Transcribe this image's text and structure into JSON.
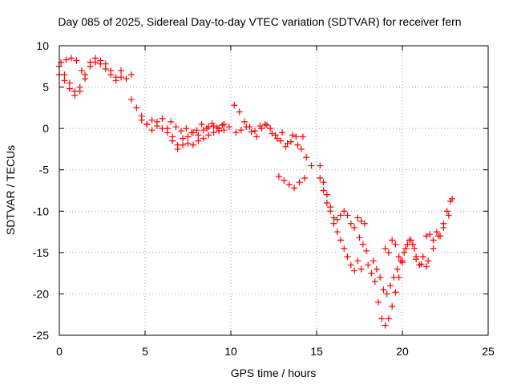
{
  "chart_data": {
    "type": "scatter",
    "title": "Day 085 of 2025, Sidereal Day-to-day VTEC variation (SDTVAR) for receiver fern",
    "xlabel": "GPS time / hours",
    "ylabel": "SDTVAR / TECUs",
    "xlim": [
      0,
      25
    ],
    "ylim": [
      -25,
      10
    ],
    "xticks": [
      0,
      5,
      10,
      15,
      20,
      25
    ],
    "yticks": [
      -25,
      -20,
      -15,
      -10,
      -5,
      0,
      5,
      10
    ],
    "xtick_labels": [
      "0",
      "5",
      "10",
      "15",
      "20",
      "25"
    ],
    "ytick_labels": [
      "-25",
      "-20",
      "-15",
      "-10",
      "-5",
      "0",
      "5",
      "10"
    ],
    "grid": true,
    "marker": "+",
    "color": "#ff0000",
    "series": [
      {
        "x": [
          0.0,
          0.3,
          0.6,
          0.9,
          1.2,
          1.5,
          1.8,
          2.1,
          2.4,
          2.7,
          3.0,
          3.3,
          3.6,
          3.9,
          4.2
        ],
        "y": [
          7.5,
          6.5,
          5.5,
          4.5,
          5.0,
          6.5,
          8.0,
          8.5,
          8.2,
          7.8,
          7.0,
          6.2,
          7.0,
          6.0,
          6.5
        ]
      },
      {
        "x": [
          0.0,
          0.3,
          0.6,
          0.9,
          1.2,
          1.5,
          1.8,
          2.1,
          2.4,
          2.7,
          3.0,
          3.3,
          3.6
        ],
        "y": [
          6.5,
          5.8,
          4.8,
          4.0,
          4.5,
          6.0,
          7.5,
          8.0,
          7.8,
          7.2,
          6.5,
          5.8,
          6.2
        ]
      },
      {
        "x": [
          0.1,
          0.4,
          0.7,
          1.0,
          1.3
        ],
        "y": [
          8.0,
          8.3,
          8.5,
          8.2,
          7.0
        ]
      },
      {
        "x": [
          4.2,
          4.5,
          4.8,
          5.1,
          5.4,
          5.7,
          6.0,
          6.3,
          6.6,
          6.9,
          7.2,
          7.5,
          7.8,
          8.1,
          8.4,
          8.7,
          9.0,
          9.3,
          9.6,
          9.9
        ],
        "y": [
          3.5,
          2.5,
          1.5,
          0.5,
          1.0,
          0.8,
          1.2,
          0.0,
          -1.0,
          -2.0,
          -1.2,
          -1.8,
          -0.5,
          -1.5,
          -0.2,
          -0.8,
          0.3,
          -0.3,
          0.5,
          0.2
        ]
      },
      {
        "x": [
          4.8,
          5.1,
          5.4,
          5.7,
          6.0,
          6.3,
          6.6,
          6.9,
          7.2,
          7.5,
          7.8,
          8.1,
          8.4,
          8.7,
          9.0,
          9.3,
          9.6
        ],
        "y": [
          1.0,
          0.5,
          -0.2,
          0.3,
          0.0,
          -0.5,
          -1.5,
          -2.5,
          -2.0,
          -1.0,
          -2.0,
          -0.8,
          -1.2,
          0.2,
          -0.5,
          0.0,
          -0.2
        ]
      },
      {
        "x": [
          6.5,
          6.8,
          7.1,
          7.4,
          7.7,
          8.0,
          8.3,
          8.6,
          8.9,
          9.2,
          9.5
        ],
        "y": [
          0.8,
          0.2,
          -0.3,
          0.0,
          -0.5,
          -0.2,
          0.5,
          0.0,
          0.6,
          0.1,
          0.4
        ]
      },
      {
        "x": [
          10.2,
          10.5,
          10.8,
          11.1,
          11.4,
          11.7,
          12.0,
          12.3,
          12.6,
          12.9,
          13.2,
          13.5,
          13.8,
          14.1,
          14.4,
          14.7
        ],
        "y": [
          2.8,
          2.0,
          0.8,
          0.2,
          -0.3,
          0.3,
          0.5,
          0.0,
          -0.8,
          -1.5,
          -2.2,
          -1.6,
          -1.0,
          -2.5,
          -3.5,
          -4.5
        ]
      },
      {
        "x": [
          10.3,
          10.6,
          10.9,
          11.2,
          11.5,
          11.8,
          12.1,
          12.4,
          12.7,
          13.0,
          13.3,
          13.6,
          13.9,
          14.2
        ],
        "y": [
          -0.5,
          -0.2,
          0.2,
          -0.4,
          -1.0,
          0.0,
          0.4,
          -0.6,
          -1.2,
          -0.5,
          -1.8,
          -0.8,
          -2.0,
          -1.0
        ]
      },
      {
        "x": [
          12.8,
          13.1,
          13.4,
          13.7,
          14.0,
          14.3
        ],
        "y": [
          -5.8,
          -6.3,
          -6.8,
          -7.2,
          -6.5,
          -6.0
        ]
      },
      {
        "x": [
          15.2,
          15.4,
          15.6,
          15.8,
          16.0,
          16.2,
          16.4,
          16.6,
          16.8,
          17.0,
          17.2,
          17.4,
          17.6,
          17.8
        ],
        "y": [
          -4.5,
          -6.5,
          -8.0,
          -9.5,
          -10.8,
          -11.0,
          -10.5,
          -10.0,
          -10.5,
          -11.5,
          -12.0,
          -10.8,
          -11.2,
          -11.5
        ]
      },
      {
        "x": [
          15.2,
          15.4,
          15.6,
          15.8,
          16.0,
          16.2,
          16.4,
          16.6,
          16.8,
          17.0,
          17.2,
          17.4,
          17.6
        ],
        "y": [
          -6.0,
          -7.5,
          -9.0,
          -10.0,
          -11.5,
          -12.5,
          -13.5,
          -14.5,
          -15.5,
          -16.5,
          -17.2,
          -16.0,
          -17.0
        ]
      },
      {
        "x": [
          17.5,
          17.7,
          17.9
        ],
        "y": [
          -13.2,
          -14.0,
          -14.8
        ]
      },
      {
        "x": [
          18.0,
          18.2,
          18.4,
          18.6,
          18.8,
          19.0,
          19.2,
          19.4,
          19.6,
          19.8,
          20.0,
          20.2,
          20.4,
          20.6,
          20.8,
          21.0,
          21.2,
          21.4,
          21.6,
          21.8,
          22.0,
          22.2,
          22.4,
          22.6,
          22.8
        ],
        "y": [
          -16.5,
          -17.5,
          -18.5,
          -21.0,
          -23.0,
          -23.8,
          -23.0,
          -21.5,
          -19.8,
          -18.0,
          -16.0,
          -14.5,
          -13.5,
          -14.0,
          -15.5,
          -16.5,
          -15.5,
          -13.0,
          -12.8,
          -13.5,
          -12.5,
          -13.0,
          -11.5,
          -10.0,
          -8.8
        ]
      },
      {
        "x": [
          18.3,
          18.5,
          18.7,
          18.9,
          19.1,
          19.3,
          19.5,
          19.7,
          19.9,
          20.1,
          20.3,
          20.5,
          20.7
        ],
        "y": [
          -16.0,
          -17.0,
          -18.0,
          -19.5,
          -20.0,
          -19.0,
          -18.0,
          -17.0,
          -16.0,
          -15.0,
          -14.0,
          -13.5,
          -14.5
        ]
      },
      {
        "x": [
          19.0,
          19.2,
          19.4,
          19.6,
          19.8,
          20.0
        ],
        "y": [
          -14.5,
          -15.0,
          -13.5,
          -14.0,
          -15.5,
          -16.2
        ]
      },
      {
        "x": [
          20.8,
          21.1,
          21.4
        ],
        "y": [
          -15.8,
          -16.4,
          -16.7
        ]
      },
      {
        "x": [
          21.5,
          21.8,
          22.1,
          22.4,
          22.7,
          22.9
        ],
        "y": [
          -16.0,
          -14.5,
          -13.0,
          -12.0,
          -10.5,
          -8.5
        ]
      }
    ]
  }
}
